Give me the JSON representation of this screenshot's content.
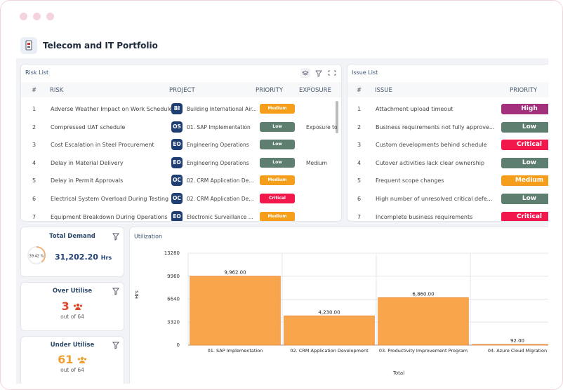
{
  "header": {
    "title": "Telecom and IT Portfolio"
  },
  "priority_colors": {
    "Medium": "#f59e1b",
    "Low": "#5e7f70",
    "Critical": "#f2184c",
    "High": "#a3307d"
  },
  "risk_list": {
    "title": "Risk List",
    "columns": [
      "#",
      "RISK",
      "PROJECT",
      "PRIORITY",
      "EXPOSURE"
    ],
    "rows": [
      {
        "number": 1,
        "risk": "Adverse Weather Impact on Work Schedule",
        "project_code": "BI",
        "project": "Building International Air...",
        "priority": "Medium"
      },
      {
        "number": 2,
        "risk": "Compressed UAT schedule",
        "project_code": "OS",
        "project": "01. SAP Implementation",
        "priority": "Low",
        "exposure": "Exposure to"
      },
      {
        "number": 3,
        "risk": "Cost Escalation in Steel Procurement",
        "project_code": "EO",
        "project": "Engineering Operations",
        "priority": "Low"
      },
      {
        "number": 4,
        "risk": "Delay in Material Delivery",
        "project_code": "EO",
        "project": "Engineering Operations",
        "priority": "Low",
        "exposure": "Medium"
      },
      {
        "number": 5,
        "risk": "Delay in Permit Approvals",
        "project_code": "OC",
        "project": "02. CRM Application De...",
        "priority": "Medium"
      },
      {
        "number": 6,
        "risk": "Electrical System Overload During Testing",
        "project_code": "OC",
        "project": "02. CRM Application De...",
        "priority": "Critical"
      },
      {
        "number": 7,
        "risk": "Equipment Breakdown During Operations",
        "project_code": "EO",
        "project": "Electronic Surveillance ...",
        "priority": "Medium"
      }
    ]
  },
  "issue_list": {
    "title": "Issue List",
    "columns": [
      "#",
      "ISSUE",
      "PRIORITY"
    ],
    "rows": [
      {
        "number": 1,
        "issue": "Attachment upload timeout",
        "priority": "High"
      },
      {
        "number": 2,
        "issue": "Business requirements not fully approve...",
        "priority": "Low"
      },
      {
        "number": 3,
        "issue": "Custom developments behind schedule",
        "priority": "Critical"
      },
      {
        "number": 4,
        "issue": "Cutover activities lack clear ownership",
        "priority": "Low"
      },
      {
        "number": 5,
        "issue": "Frequent scope changes",
        "priority": "Medium"
      },
      {
        "number": 6,
        "issue": "High number of unresolved critical defe...",
        "priority": "Low"
      },
      {
        "number": 7,
        "issue": "Incomplete business requirements",
        "priority": "Critical"
      }
    ]
  },
  "total_demand": {
    "title": "Total Demand",
    "percent": 39.42,
    "percent_label": "39.42 %",
    "value": "31,202.20",
    "unit": "Hrs"
  },
  "over_utilise": {
    "title": "Over Utilise",
    "count": 3,
    "out_of": "out of 64"
  },
  "under_utilise": {
    "title": "Under Utilise",
    "count": 61,
    "out_of": "out of 64"
  },
  "chart_data": {
    "type": "bar",
    "title": "Utilization",
    "y_label": "Hrs",
    "x_label": "Total",
    "categories": [
      "01. SAP Implementation",
      "02. CRM Application Development",
      "03. Productivity Improvement Program",
      "04. Azure Cloud Migration"
    ],
    "values": [
      9962,
      4230,
      6860,
      92
    ],
    "value_labels": [
      "9,962.00",
      "4,230.00",
      "6,860.00",
      "92.00"
    ],
    "color": "#f9a54c",
    "ylim": [
      0,
      13280
    ],
    "yticks": [
      0,
      3320,
      6640,
      9960,
      13280
    ],
    "grid": true
  }
}
